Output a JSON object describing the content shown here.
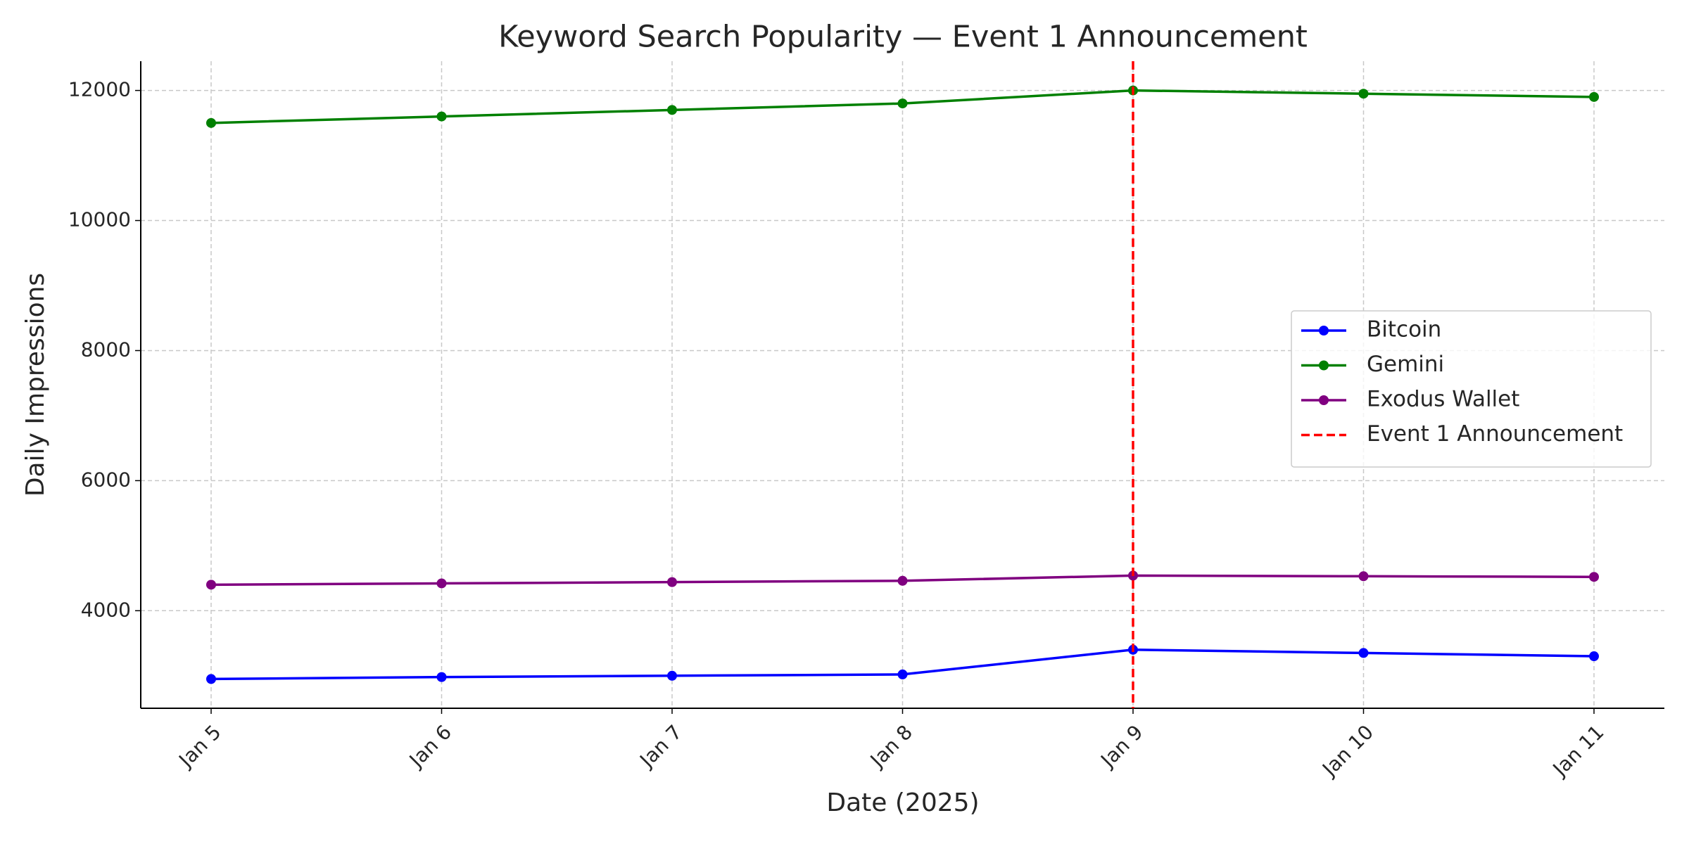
{
  "chart_data": {
    "type": "line",
    "title": "Keyword Search Popularity — Event 1 Announcement",
    "x_label": "Date (2025)",
    "y_label": "Daily Impressions",
    "categories": [
      "Jan 5",
      "Jan 6",
      "Jan 7",
      "Jan 8",
      "Jan 9",
      "Jan 10",
      "Jan 11"
    ],
    "series": [
      {
        "name": "Bitcoin",
        "color": "#0000ff",
        "values": [
          2950,
          2980,
          3000,
          3020,
          3400,
          3350,
          3300
        ]
      },
      {
        "name": "Gemini",
        "color": "#008000",
        "values": [
          11500,
          11600,
          11700,
          11800,
          12000,
          11950,
          11900
        ]
      },
      {
        "name": "Exodus Wallet",
        "color": "#800080",
        "values": [
          4400,
          4420,
          4440,
          4460,
          4540,
          4530,
          4520
        ]
      }
    ],
    "event": {
      "name": "Event 1 Announcement",
      "at": "Jan 9",
      "color": "#ff0000"
    },
    "ylim": [
      2500,
      12450
    ],
    "yticks": [
      4000,
      6000,
      8000,
      10000,
      12000
    ],
    "grid": true,
    "legend": "right"
  }
}
